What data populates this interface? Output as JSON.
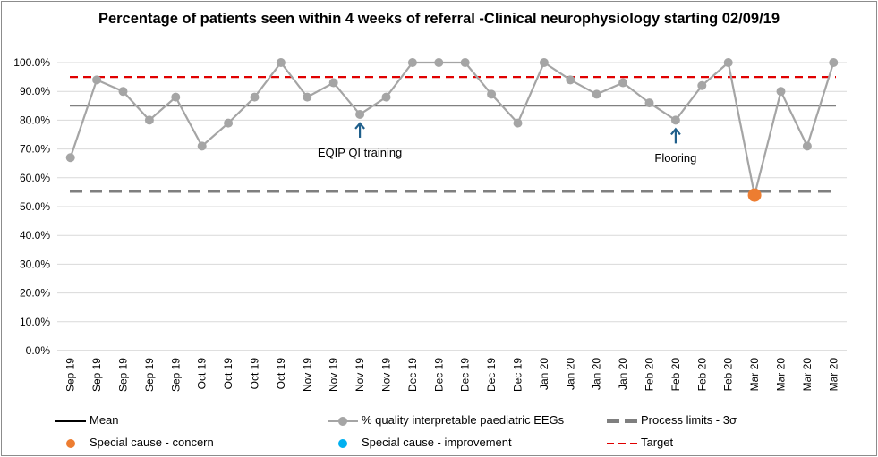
{
  "chart_data": {
    "type": "line",
    "title": "Percentage of patients seen within 4 weeks of referral -Clinical neurophysiology starting 02/09/19",
    "categories": [
      "Sep 19",
      "Sep 19",
      "Sep 19",
      "Sep 19",
      "Sep 19",
      "Oct 19",
      "Oct 19",
      "Oct 19",
      "Oct 19",
      "Nov 19",
      "Nov 19",
      "Nov 19",
      "Nov 19",
      "Dec 19",
      "Dec 19",
      "Dec 19",
      "Dec 19",
      "Dec 19",
      "Jan 20",
      "Jan 20",
      "Jan 20",
      "Jan 20",
      "Feb 20",
      "Feb 20",
      "Feb 20",
      "Feb 20",
      "Mar 20",
      "Mar 20",
      "Mar 20",
      "Mar 20"
    ],
    "yticks": [
      "0.0%",
      "10.0%",
      "20.0%",
      "30.0%",
      "40.0%",
      "50.0%",
      "60.0%",
      "70.0%",
      "80.0%",
      "90.0%",
      "100.0%"
    ],
    "ylim": [
      0,
      100
    ],
    "grid": true,
    "series": [
      {
        "name": "% quality interpretable paediatric EEGs",
        "color": "#a5a5a5",
        "values": [
          67,
          94,
          90,
          80,
          88,
          71,
          79,
          88,
          100,
          88,
          93,
          82,
          88,
          100,
          100,
          100,
          89,
          79,
          100,
          94,
          89,
          93,
          86,
          80,
          92,
          100,
          54,
          90,
          71,
          100
        ]
      }
    ],
    "mean": {
      "name": "Mean",
      "value": 85,
      "color": "#000000"
    },
    "process_limit": {
      "name": "Process limits - 3σ",
      "value": 55.3,
      "color": "#7f7f7f"
    },
    "target": {
      "name": "Target",
      "value": 95,
      "color": "#e00000"
    },
    "special_cause_concern": {
      "name": "Special cause - concern",
      "color": "#ed7d31",
      "points": [
        26
      ]
    },
    "special_cause_improvement": {
      "name": "Special cause  - improvement",
      "color": "#00b0f0",
      "points": []
    },
    "annotations": [
      {
        "text": "EQIP QI training",
        "index": 11,
        "arrow_color": "#1f5f8b"
      },
      {
        "text": "Flooring",
        "index": 23,
        "arrow_color": "#1f5f8b"
      }
    ],
    "legend_position": "bottom"
  }
}
